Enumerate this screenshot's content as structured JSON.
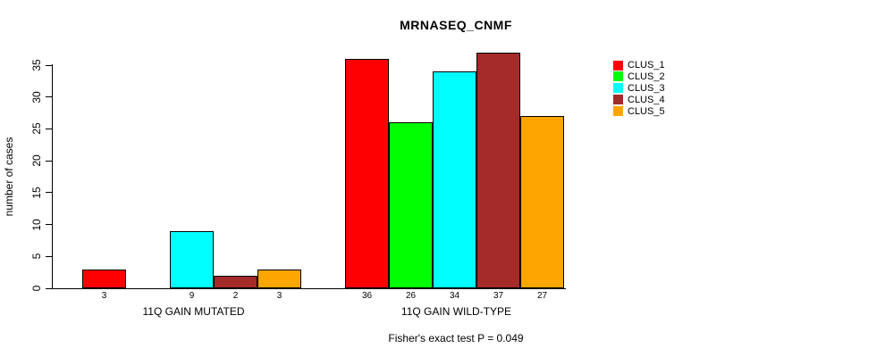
{
  "chart_data": {
    "type": "bar",
    "title": "MRNASEQ_CNMF",
    "xlabel": "",
    "ylabel": "number of cases",
    "annotation": "Fisher's exact test P = 0.049",
    "ylim": [
      0,
      35
    ],
    "yticks": [
      0,
      5,
      10,
      15,
      20,
      25,
      30,
      35
    ],
    "grid": false,
    "legend_position": "right-outside",
    "categories": [
      "11Q GAIN MUTATED",
      "11Q GAIN WILD-TYPE"
    ],
    "series": [
      {
        "name": "CLUS_1",
        "color": "#ff0000",
        "values": [
          3,
          36
        ]
      },
      {
        "name": "CLUS_2",
        "color": "#00ff00",
        "values": [
          0,
          26
        ]
      },
      {
        "name": "CLUS_3",
        "color": "#00ffff",
        "values": [
          9,
          34
        ]
      },
      {
        "name": "CLUS_4",
        "color": "#a52a2a",
        "values": [
          2,
          37
        ]
      },
      {
        "name": "CLUS_5",
        "color": "#ffa500",
        "values": [
          3,
          27
        ]
      }
    ],
    "bar_value_labels": {
      "11Q GAIN MUTATED": [
        "3",
        "",
        "9",
        "2",
        "3"
      ],
      "11Q GAIN WILD-TYPE": [
        "36",
        "26",
        "34",
        "37",
        "27"
      ]
    },
    "colors": {
      "background": "#ffffff",
      "axis": "#000000",
      "bar_border": "#000000"
    }
  }
}
